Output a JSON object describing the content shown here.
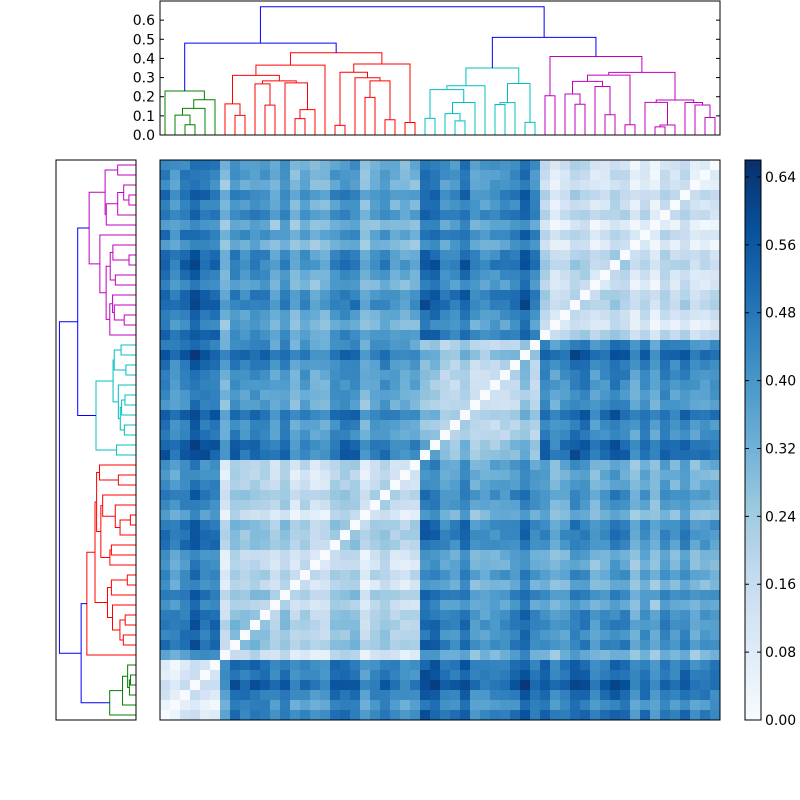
{
  "chart_data": {
    "type": "heatmap",
    "title": "",
    "description_free": true,
    "n": 56,
    "colormap": "Blues",
    "colorbar": {
      "ticks": [
        "0.00",
        "0.08",
        "0.16",
        "0.24",
        "0.32",
        "0.40",
        "0.48",
        "0.56",
        "0.64"
      ],
      "range": [
        0,
        0.66
      ]
    },
    "top_dendrogram": {
      "yaxis": {
        "ticks": [
          "0.0",
          "0.1",
          "0.2",
          "0.3",
          "0.4",
          "0.5",
          "0.6"
        ],
        "range": [
          0,
          0.7
        ]
      },
      "root_height": 0.67,
      "clusters": [
        {
          "color": "#008000",
          "size": 6,
          "height": 0.23
        },
        {
          "color": "#ff0000",
          "size": 20,
          "height": 0.43
        },
        {
          "color": "#00bfbf",
          "size": 12,
          "height": 0.35
        },
        {
          "color": "#bf00bf",
          "size": 18,
          "height": 0.41
        }
      ],
      "link_color": "#0000ff",
      "joins": [
        {
          "clusters": [
            0,
            1
          ],
          "height": 0.48
        },
        {
          "clusters": [
            2,
            3
          ],
          "height": 0.51
        },
        {
          "clusters": [
            "0-1",
            "2-3"
          ],
          "height": 0.67
        }
      ]
    },
    "left_dendrogram": {
      "clusters": [
        {
          "color": "#008000",
          "size": 6
        },
        {
          "color": "#ff0000",
          "size": 20
        },
        {
          "color": "#00bfbf",
          "size": 12
        },
        {
          "color": "#bf00bf",
          "size": 18
        }
      ],
      "link_color": "#0000ff"
    }
  }
}
